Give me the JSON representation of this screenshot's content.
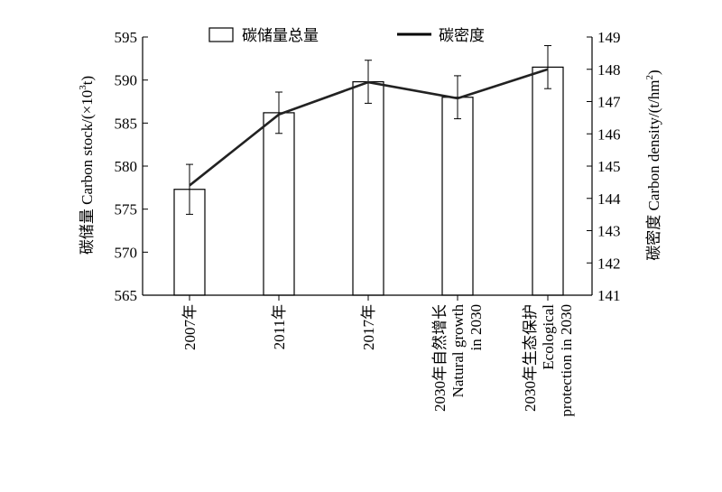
{
  "chart_data": {
    "type": "bar",
    "categories": [
      [
        "2007年"
      ],
      [
        "2011年"
      ],
      [
        "2017年"
      ],
      [
        "2030年自然增长",
        "Natural growth",
        "in 2030"
      ],
      [
        "2030年生态保护",
        "Ecological",
        "protection in 2030"
      ]
    ],
    "series": [
      {
        "name": "碳储量总量",
        "type": "bar",
        "axis": "left",
        "values": [
          577.3,
          586.2,
          589.8,
          588.0,
          591.5
        ],
        "error": [
          2.9,
          2.4,
          2.5,
          2.5,
          2.5
        ]
      },
      {
        "name": "碳密度",
        "type": "line",
        "axis": "right",
        "values": [
          144.4,
          146.6,
          147.6,
          147.1,
          148.0
        ]
      }
    ],
    "ylabel_left": {
      "cn": "碳储量",
      "en": "Carbon stock/(×10",
      "sup": "3",
      "end": "t)"
    },
    "ylabel_right": {
      "cn": "碳密度",
      "en": "Carbon density/(t/hm",
      "sup": "2",
      "end": ")"
    },
    "ylim_left": [
      565,
      595
    ],
    "yticks_left": [
      565,
      570,
      575,
      580,
      585,
      590,
      595
    ],
    "ylim_right": [
      141,
      149
    ],
    "yticks_right": [
      141,
      142,
      143,
      144,
      145,
      146,
      147,
      148,
      149
    ],
    "legend_position": "top-center",
    "grid": false
  }
}
